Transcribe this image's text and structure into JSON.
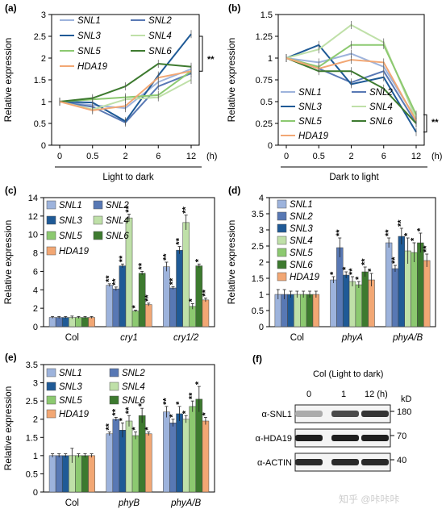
{
  "colors": {
    "SNL1": "#9db3dc",
    "SNL2": "#5878b4",
    "SNL3": "#1f5a96",
    "SNL4": "#bfe0a8",
    "SNL5": "#8cc970",
    "SNL6": "#3d7a2f",
    "HDA19": "#f2a774"
  },
  "chart_data": [
    {
      "id": "a",
      "panel_label": "(a)",
      "type": "line",
      "ylabel": "Relative expression",
      "xlabel": "Light to dark",
      "x_unit": "(h)",
      "categories": [
        "0",
        "0.5",
        "2",
        "6",
        "12"
      ],
      "ylim": [
        0,
        3
      ],
      "yticks": [
        "0",
        "0.5",
        "1",
        "1.5",
        "2",
        "2.5",
        "3"
      ],
      "significance": "**",
      "legend": [
        "SNL1",
        "SNL2",
        "SNL3",
        "SNL4",
        "SNL5",
        "SNL6",
        "HDA19"
      ],
      "series": [
        {
          "name": "SNL1",
          "values": [
            1.0,
            0.92,
            0.85,
            1.45,
            1.75
          ]
        },
        {
          "name": "SNL2",
          "values": [
            1.0,
            0.88,
            0.52,
            1.35,
            1.65
          ]
        },
        {
          "name": "SNL3",
          "values": [
            1.0,
            0.98,
            0.55,
            1.6,
            2.55
          ]
        },
        {
          "name": "SNL4",
          "values": [
            1.0,
            0.82,
            1.05,
            1.1,
            1.5
          ]
        },
        {
          "name": "SNL5",
          "values": [
            1.0,
            1.05,
            1.1,
            1.15,
            1.7
          ]
        },
        {
          "name": "SNL6",
          "values": [
            1.0,
            1.08,
            1.35,
            1.87,
            1.8
          ]
        },
        {
          "name": "HDA19",
          "values": [
            1.0,
            0.8,
            0.9,
            1.55,
            1.7
          ]
        }
      ]
    },
    {
      "id": "b",
      "panel_label": "(b)",
      "type": "line",
      "ylabel": "Relative expression",
      "xlabel": "Dark to light",
      "x_unit": "(h)",
      "categories": [
        "0",
        "0.5",
        "2",
        "6",
        "12"
      ],
      "ylim": [
        0,
        1.5
      ],
      "yticks": [
        "0",
        "0.25",
        "0.5",
        "0.75",
        "1",
        "1.25",
        "1.5"
      ],
      "significance": "**",
      "legend": [
        "SNL1",
        "SNL2",
        "SNL3",
        "SNL4",
        "SNL5",
        "SNL6",
        "HDA19"
      ],
      "series": [
        {
          "name": "SNL1",
          "values": [
            1.0,
            0.95,
            1.05,
            0.9,
            0.3
          ]
        },
        {
          "name": "SNL2",
          "values": [
            1.0,
            0.88,
            0.72,
            0.85,
            0.25
          ]
        },
        {
          "name": "SNL3",
          "values": [
            1.0,
            1.15,
            0.7,
            0.78,
            0.15
          ]
        },
        {
          "name": "SNL4",
          "values": [
            1.0,
            1.1,
            1.38,
            1.18,
            0.3
          ]
        },
        {
          "name": "SNL5",
          "values": [
            1.0,
            0.9,
            1.15,
            1.15,
            0.35
          ]
        },
        {
          "name": "SNL6",
          "values": [
            1.0,
            0.85,
            0.85,
            0.65,
            0.25
          ]
        },
        {
          "name": "HDA19",
          "values": [
            1.0,
            0.88,
            0.98,
            0.95,
            0.28
          ]
        }
      ]
    },
    {
      "id": "c",
      "panel_label": "(c)",
      "type": "bar",
      "ylabel": "Relative expression",
      "categories": [
        "Col",
        "cry1",
        "cry1/2"
      ],
      "category_italic": [
        false,
        true,
        true
      ],
      "ylim": [
        0,
        14
      ],
      "yticks": [
        "0",
        "2",
        "4",
        "6",
        "8",
        "10",
        "12",
        "14"
      ],
      "legend": [
        "SNL1",
        "SNL2",
        "SNL3",
        "SNL4",
        "SNL5",
        "SNL6",
        "HDA19"
      ],
      "series": [
        {
          "name": "SNL1",
          "values": [
            1.0,
            4.5,
            6.5
          ],
          "err": [
            0.1,
            0.15,
            0.5
          ],
          "stars": [
            "",
            "**",
            "**"
          ]
        },
        {
          "name": "SNL2",
          "values": [
            1.0,
            4.1,
            4.2
          ],
          "err": [
            0.1,
            0.2,
            0.15
          ],
          "stars": [
            "",
            "**",
            "**"
          ]
        },
        {
          "name": "SNL3",
          "values": [
            1.0,
            6.6,
            8.3
          ],
          "err": [
            0.1,
            0.2,
            0.4
          ],
          "stars": [
            "",
            "**",
            "**"
          ]
        },
        {
          "name": "SNL4",
          "values": [
            1.0,
            11.8,
            11.3
          ],
          "err": [
            0.15,
            0.4,
            0.8
          ],
          "stars": [
            "",
            "**",
            "**"
          ]
        },
        {
          "name": "SNL5",
          "values": [
            1.0,
            1.7,
            2.2
          ],
          "err": [
            0.1,
            0.1,
            0.3
          ],
          "stars": [
            "",
            "*",
            "*"
          ]
        },
        {
          "name": "SNL6",
          "values": [
            1.0,
            5.8,
            6.6
          ],
          "err": [
            0.1,
            0.2,
            0.2
          ],
          "stars": [
            "",
            "**",
            "*"
          ]
        },
        {
          "name": "HDA19",
          "values": [
            1.0,
            2.4,
            2.9
          ],
          "err": [
            0.1,
            0.15,
            0.2
          ],
          "stars": [
            "",
            "**",
            "**"
          ]
        }
      ]
    },
    {
      "id": "d",
      "panel_label": "(d)",
      "type": "bar",
      "ylabel": "Relative expression",
      "categories": [
        "Col",
        "phyA",
        "phyA/B"
      ],
      "category_italic": [
        false,
        true,
        true
      ],
      "ylim": [
        0,
        4
      ],
      "yticks": [
        "0",
        "0.5",
        "1",
        "1.5",
        "2",
        "2.5",
        "3",
        "3.5",
        "4"
      ],
      "legend": [
        "SNL1",
        "SNL2",
        "SNL3",
        "SNL4",
        "SNL5",
        "SNL6",
        "HDA19"
      ],
      "series": [
        {
          "name": "SNL1",
          "values": [
            1.0,
            1.45,
            2.6
          ],
          "err": [
            0.15,
            0.1,
            0.15
          ],
          "stars": [
            "",
            "*",
            "**"
          ]
        },
        {
          "name": "SNL2",
          "values": [
            1.0,
            2.45,
            1.8
          ],
          "err": [
            0.15,
            0.3,
            0.1
          ],
          "stars": [
            "",
            "**",
            "**"
          ]
        },
        {
          "name": "SNL3",
          "values": [
            1.0,
            1.6,
            2.8
          ],
          "err": [
            0.1,
            0.1,
            0.25
          ],
          "stars": [
            "",
            "*",
            "**"
          ]
        },
        {
          "name": "SNL4",
          "values": [
            1.0,
            1.4,
            2.35
          ],
          "err": [
            0.1,
            0.15,
            0.4
          ],
          "stars": [
            "",
            "**",
            "*"
          ]
        },
        {
          "name": "SNL5",
          "values": [
            1.0,
            1.3,
            2.3
          ],
          "err": [
            0.1,
            0.1,
            0.3
          ],
          "stars": [
            "",
            "*",
            "*"
          ]
        },
        {
          "name": "SNL6",
          "values": [
            1.0,
            1.7,
            2.6
          ],
          "err": [
            0.1,
            0.15,
            0.3
          ],
          "stars": [
            "",
            "**",
            "*"
          ]
        },
        {
          "name": "HDA19",
          "values": [
            1.0,
            1.45,
            2.05
          ],
          "err": [
            0.1,
            0.2,
            0.2
          ],
          "stars": [
            "",
            "*",
            "**"
          ]
        }
      ]
    },
    {
      "id": "e",
      "panel_label": "(e)",
      "type": "bar",
      "ylabel": "Relative expression",
      "categories": [
        "Col",
        "phyB",
        "phyA/B"
      ],
      "category_italic": [
        false,
        true,
        true
      ],
      "ylim": [
        0,
        3.5
      ],
      "yticks": [
        "0",
        "0.5",
        "1",
        "1.5",
        "2",
        "2.5",
        "3",
        "3.5"
      ],
      "legend": [
        "SNL1",
        "SNL2",
        "SNL3",
        "SNL4",
        "SNL5",
        "SNL6",
        "HDA19"
      ],
      "series": [
        {
          "name": "SNL1",
          "values": [
            1.0,
            1.6,
            2.2
          ],
          "err": [
            0.05,
            0.05,
            0.15
          ],
          "stars": [
            "",
            "**",
            "**"
          ]
        },
        {
          "name": "SNL2",
          "values": [
            1.0,
            2.0,
            1.9
          ],
          "err": [
            0.05,
            0.05,
            0.1
          ],
          "stars": [
            "",
            "**",
            "*"
          ]
        },
        {
          "name": "SNL3",
          "values": [
            1.0,
            1.7,
            2.15
          ],
          "err": [
            0.05,
            0.2,
            0.2
          ],
          "stars": [
            "",
            "*",
            "*"
          ]
        },
        {
          "name": "SNL4",
          "values": [
            1.0,
            1.95,
            2.0
          ],
          "err": [
            0.2,
            0.15,
            0.1
          ],
          "stars": [
            "",
            "**",
            "*"
          ]
        },
        {
          "name": "SNL5",
          "values": [
            1.0,
            1.55,
            2.35
          ],
          "err": [
            0.05,
            0.1,
            0.15
          ],
          "stars": [
            "",
            "*",
            "**"
          ]
        },
        {
          "name": "SNL6",
          "values": [
            1.0,
            2.1,
            2.55
          ],
          "err": [
            0.05,
            0.2,
            0.35
          ],
          "stars": [
            "",
            "*",
            "*"
          ]
        },
        {
          "name": "HDA19",
          "values": [
            1.0,
            1.6,
            1.95
          ],
          "err": [
            0.05,
            0.05,
            0.1
          ],
          "stars": [
            "",
            "*",
            "*"
          ]
        }
      ]
    }
  ],
  "blot": {
    "panel_label": "(f)",
    "condition": "Col (Light to dark)",
    "lanes": [
      "0",
      "1",
      "12 (h)"
    ],
    "kd_label": "kD",
    "rows": [
      {
        "label": "α-SNL1",
        "marker": "180",
        "intensity": [
          0.3,
          0.75,
          0.85
        ]
      },
      {
        "label": "α-HDA19",
        "marker": "70",
        "intensity": [
          0.95,
          0.95,
          0.95
        ]
      },
      {
        "label": "α-ACTIN",
        "marker": "40",
        "intensity": [
          0.9,
          0.9,
          0.9
        ]
      }
    ]
  },
  "watermark": "知乎 @咔咔咔"
}
